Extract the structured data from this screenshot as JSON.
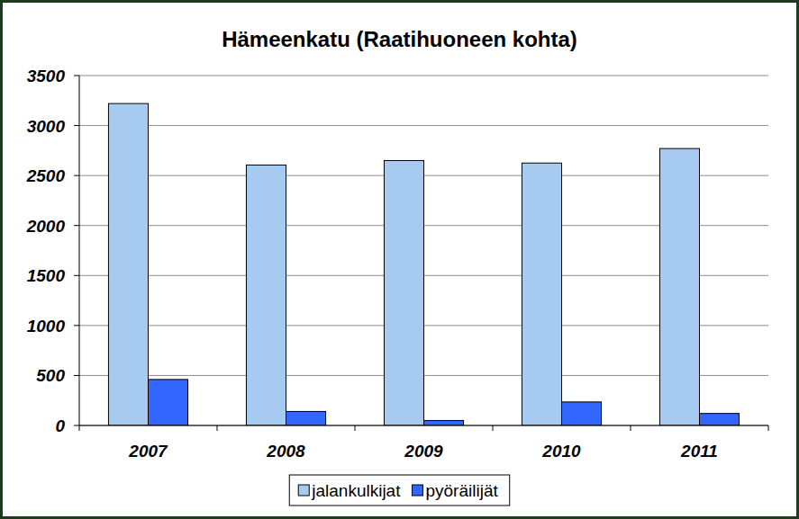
{
  "chart_data": {
    "type": "bar",
    "title": "Hämeenkatu (Raatihuoneen kohta)",
    "categories": [
      "2007",
      "2008",
      "2009",
      "2010",
      "2011"
    ],
    "series": [
      {
        "name": "jalankulkijat",
        "color": "#a6caf0",
        "values": [
          3220,
          2605,
          2650,
          2625,
          2770
        ]
      },
      {
        "name": "pyöräilijät",
        "color": "#3366ff",
        "values": [
          460,
          140,
          50,
          235,
          120
        ]
      }
    ],
    "ylim": [
      0,
      3500
    ],
    "yticks": [
      0,
      500,
      1000,
      1500,
      2000,
      2500,
      3000,
      3500
    ],
    "grid": true,
    "legend": "bottom"
  }
}
